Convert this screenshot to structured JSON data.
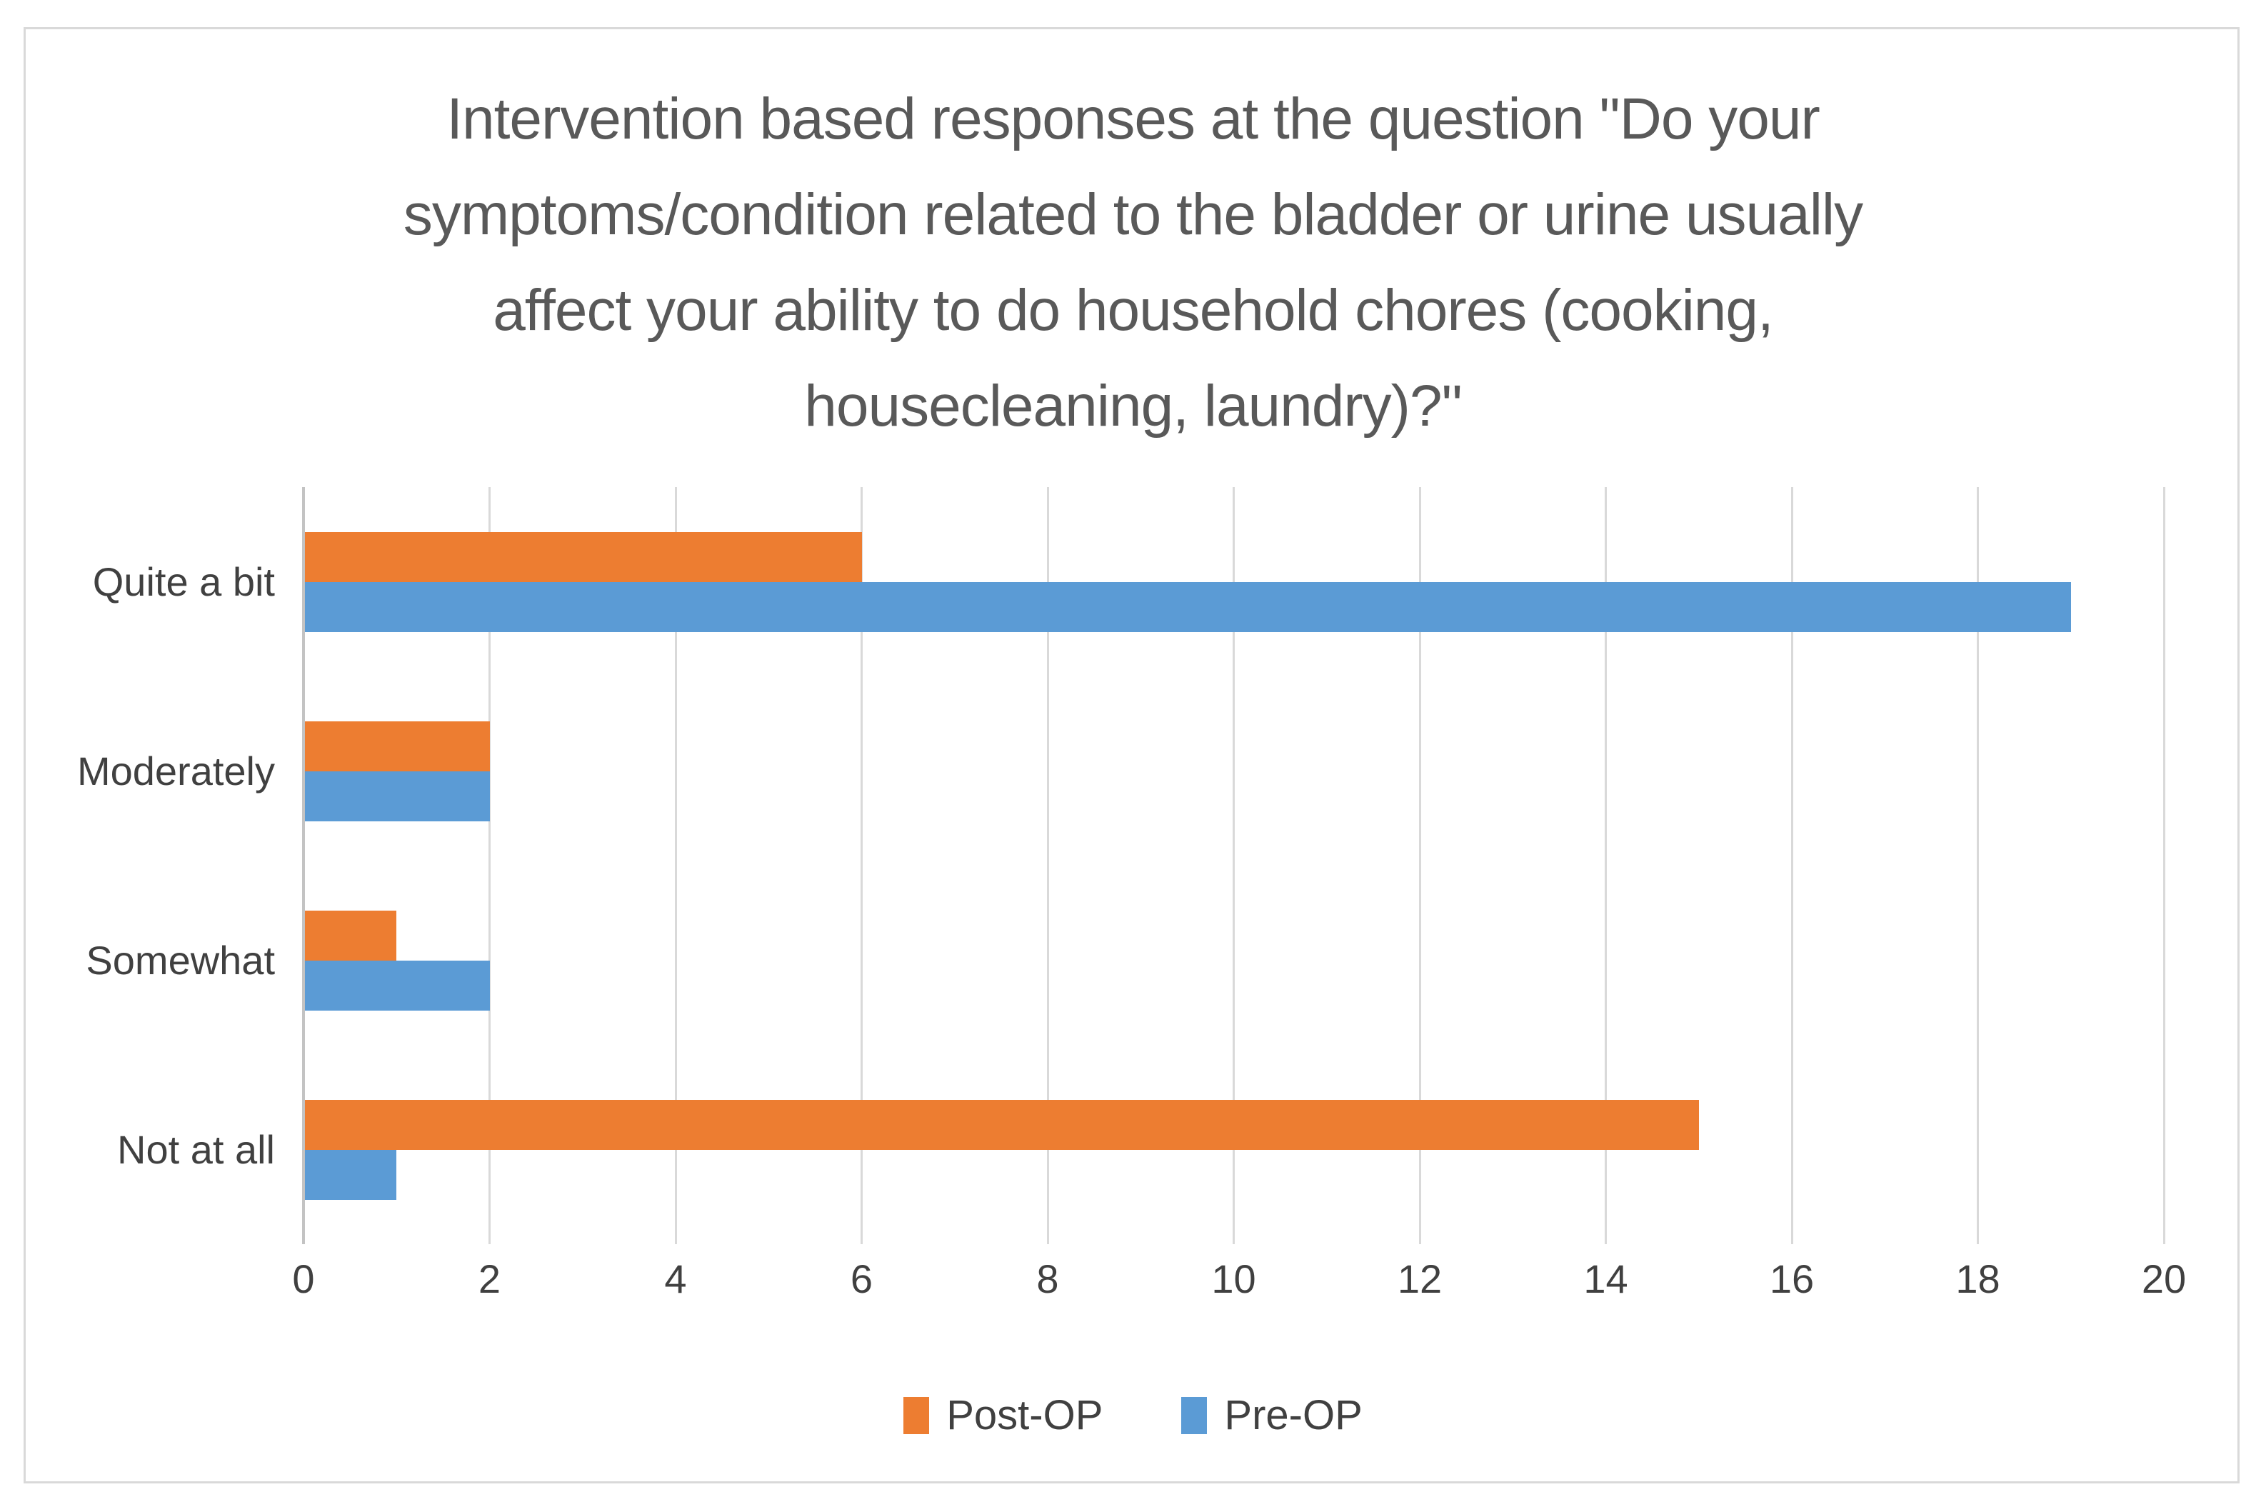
{
  "chart_data": {
    "type": "bar",
    "orientation": "horizontal",
    "title": "Intervention based responses at the question \"Do your symptoms/condition related to the bladder or urine usually affect your ability to do household chores (cooking, housecleaning, laundry)?\"",
    "title_lines": [
      "Intervention based responses at the question \"Do your",
      "symptoms/condition related to the bladder or urine usually",
      "affect your ability to do household chores (cooking,",
      "housecleaning, laundry)?\""
    ],
    "categories": [
      "Quite a bit",
      "Moderately",
      "Somewhat",
      "Not at all"
    ],
    "series": [
      {
        "name": "Post-OP",
        "color": "#ED7D31",
        "values": [
          6,
          2,
          1,
          15
        ]
      },
      {
        "name": "Pre-OP",
        "color": "#5B9BD5",
        "values": [
          19,
          2,
          2,
          1
        ]
      }
    ],
    "x_axis": {
      "min": 0,
      "max": 20,
      "step": 2,
      "tick_labels": [
        "0",
        "2",
        "4",
        "6",
        "8",
        "10",
        "12",
        "14",
        "16",
        "18",
        "20"
      ]
    },
    "legend": {
      "position": "bottom",
      "entries": [
        "Post-OP",
        "Pre-OP"
      ]
    },
    "grid": true,
    "colors": {
      "title_text": "#595959",
      "axis_text": "#404040",
      "gridline": "#D9D9D9",
      "axis_line": "#C3C3C3",
      "chart_border": "#D9D9D9",
      "background": "#FFFFFF"
    }
  }
}
